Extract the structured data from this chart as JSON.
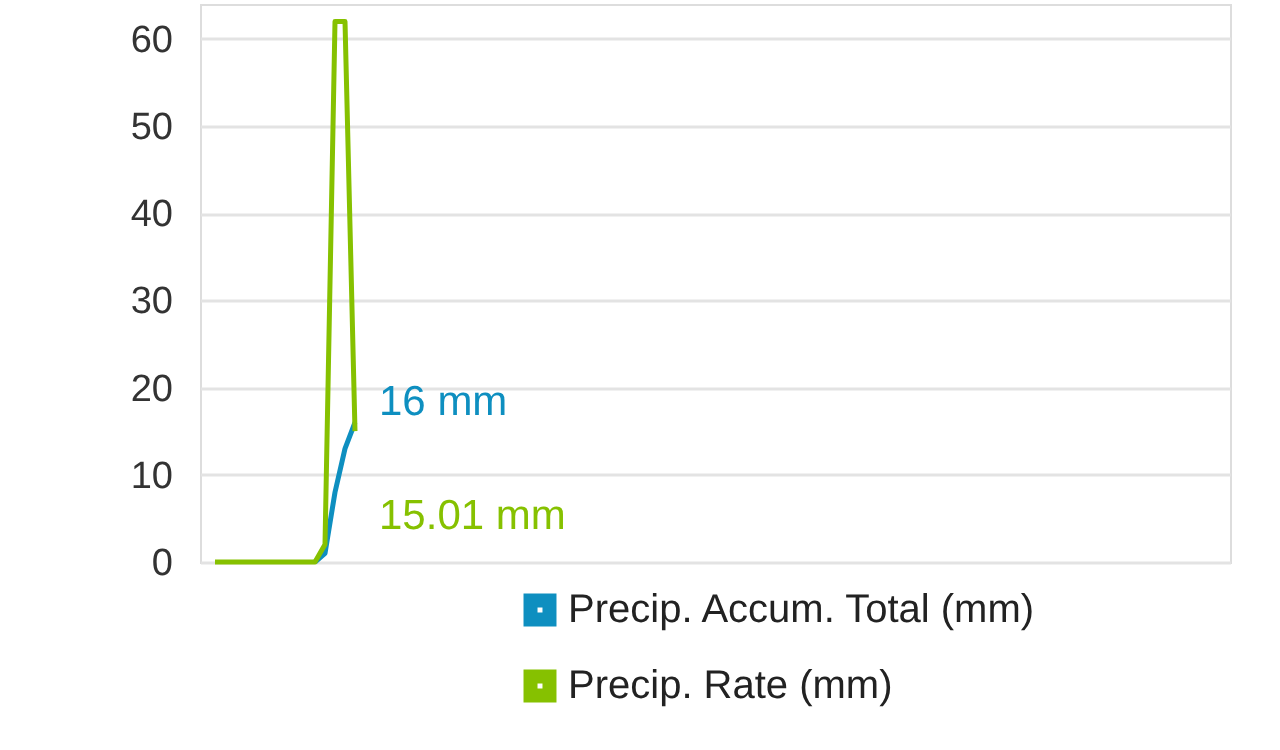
{
  "chart_data": {
    "type": "line",
    "categories": [
      null,
      null,
      null,
      null,
      null,
      null,
      null,
      null,
      null,
      null,
      null,
      null,
      null,
      null,
      null,
      null,
      null,
      null,
      null,
      null,
      null,
      null,
      null,
      null,
      null,
      null,
      null,
      null,
      null,
      null,
      null,
      null,
      null,
      null,
      null,
      null,
      null,
      null,
      null,
      null,
      null,
      null,
      null,
      null,
      null,
      null,
      null,
      null,
      null,
      null,
      null,
      null,
      null,
      null,
      null,
      null,
      null,
      null,
      null,
      null,
      null,
      null,
      null,
      null,
      null,
      null,
      null,
      null,
      null,
      null,
      null,
      null,
      null,
      null,
      null,
      null,
      null,
      null,
      null,
      null,
      null,
      null,
      null,
      null,
      null,
      null,
      null,
      null,
      null,
      null,
      null,
      null,
      null,
      null,
      null,
      null,
      null,
      null,
      null,
      null,
      null,
      null,
      null
    ],
    "series": [
      {
        "name": "Precip. Accum. Total (mm)",
        "color": "#0e8fc0",
        "values": [
          null,
          null,
          null,
          null,
          null,
          null,
          null,
          null,
          null,
          null,
          null,
          0,
          1,
          8,
          13,
          16,
          null,
          null,
          null,
          null,
          null,
          null,
          null,
          null,
          null,
          null,
          null,
          null,
          null,
          null,
          null,
          null,
          null,
          null,
          null,
          null,
          null,
          null,
          null,
          null,
          null,
          null,
          null,
          null,
          null,
          null,
          null,
          null,
          null,
          null,
          null,
          null,
          null,
          null,
          null,
          null,
          null,
          null,
          null,
          null,
          null,
          null,
          null,
          null,
          null,
          null,
          null,
          null,
          null,
          null,
          null,
          null,
          null,
          null,
          null,
          null,
          null,
          null,
          null,
          null,
          null,
          null,
          null,
          null,
          null,
          null,
          null,
          null,
          null,
          null,
          null,
          null,
          null,
          null,
          null,
          null,
          null,
          null,
          null,
          null,
          null,
          null,
          null
        ]
      },
      {
        "name": "Precip. Rate (mm)",
        "color": "#86c100",
        "values": [
          null,
          0,
          0,
          0,
          0,
          0,
          0,
          0,
          0,
          0,
          0,
          0,
          2,
          62,
          62,
          15.01,
          null,
          null,
          null,
          null,
          null,
          null,
          null,
          null,
          null,
          null,
          null,
          null,
          null,
          null,
          null,
          null,
          null,
          null,
          null,
          null,
          null,
          null,
          null,
          null,
          null,
          null,
          null,
          null,
          null,
          null,
          null,
          null,
          null,
          null,
          null,
          null,
          null,
          null,
          null,
          null,
          null,
          null,
          null,
          null,
          null,
          null,
          null,
          null,
          null,
          null,
          null,
          null,
          null,
          null,
          null,
          null,
          null,
          null,
          null,
          null,
          null,
          null,
          null,
          null,
          null,
          null,
          null,
          null,
          null,
          null,
          null,
          null,
          null,
          null,
          null,
          null,
          null,
          null,
          null,
          null,
          null,
          null,
          null,
          null,
          null,
          null,
          null
        ]
      }
    ],
    "annotations": [
      "16 mm",
      "15.01 mm"
    ],
    "ylim": [
      0,
      64
    ],
    "yticks": [
      0,
      10,
      20,
      30,
      40,
      50,
      60
    ],
    "grid": "y",
    "legend": "bottom right",
    "tick_labels": "y",
    "marker": "none",
    "line_style": "solid"
  }
}
